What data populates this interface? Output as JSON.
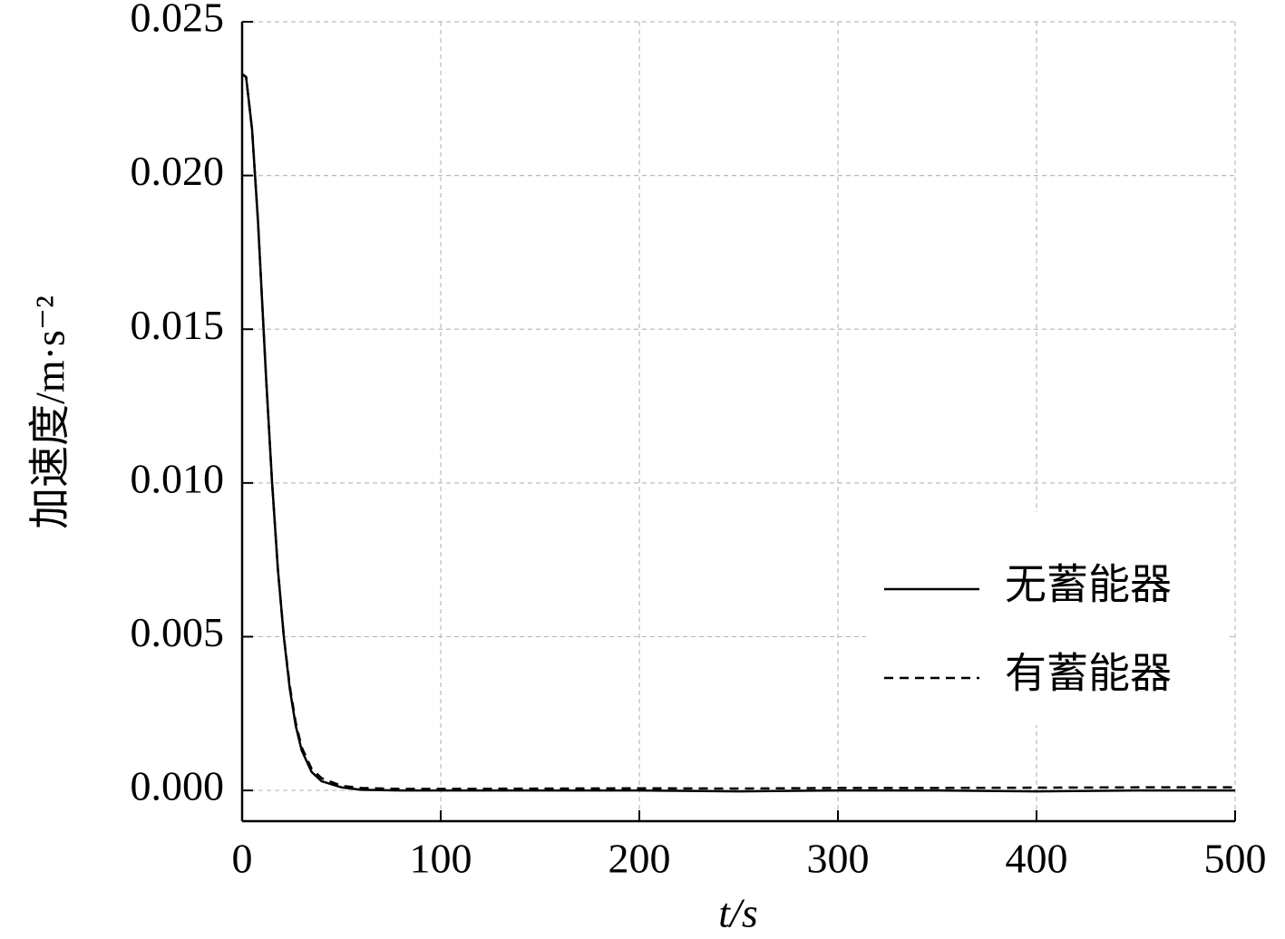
{
  "chart_data": {
    "type": "line",
    "x_label": "t/s",
    "y_label": "加速度/m·s⁻²",
    "x": [
      0,
      2,
      5,
      8,
      10,
      12,
      15,
      18,
      21,
      24,
      27,
      30,
      35,
      40,
      50,
      60,
      80,
      100,
      150,
      200,
      250,
      300,
      350,
      400,
      450,
      500
    ],
    "series": [
      {
        "name": "无蓄能器",
        "color": "#000000",
        "dash": "solid",
        "values": [
          0.0233,
          0.0232,
          0.0215,
          0.0185,
          0.016,
          0.0135,
          0.0101,
          0.0072,
          0.005,
          0.0033,
          0.0021,
          0.0013,
          0.0006,
          0.0003,
          0.0001,
          2e-05,
          0,
          0,
          0,
          0,
          -3e-05,
          0,
          0,
          -3e-05,
          0,
          0
        ]
      },
      {
        "name": "有蓄能器",
        "color": "#000000",
        "dash": "dashed",
        "values": [
          0.0233,
          0.0232,
          0.0215,
          0.0185,
          0.016,
          0.0135,
          0.0101,
          0.0072,
          0.005,
          0.0034,
          0.0022,
          0.0014,
          0.0007,
          0.0004,
          0.00015,
          8e-05,
          5e-05,
          5e-05,
          6e-05,
          7e-05,
          6e-05,
          8e-05,
          8e-05,
          9e-05,
          0.0001,
          0.0001
        ]
      }
    ],
    "xlim": [
      0,
      500
    ],
    "xticks": [
      0,
      100,
      200,
      300,
      400,
      500
    ],
    "ylim": [
      -0.001,
      0.025
    ],
    "yticks": [
      {
        "value": 0,
        "label": "0.000"
      },
      0.005,
      {
        "value": 0.01,
        "label": "0.010"
      },
      0.015,
      {
        "value": 0.02,
        "label": "0.020"
      },
      0.025
    ],
    "grid": true,
    "legend": "right"
  }
}
